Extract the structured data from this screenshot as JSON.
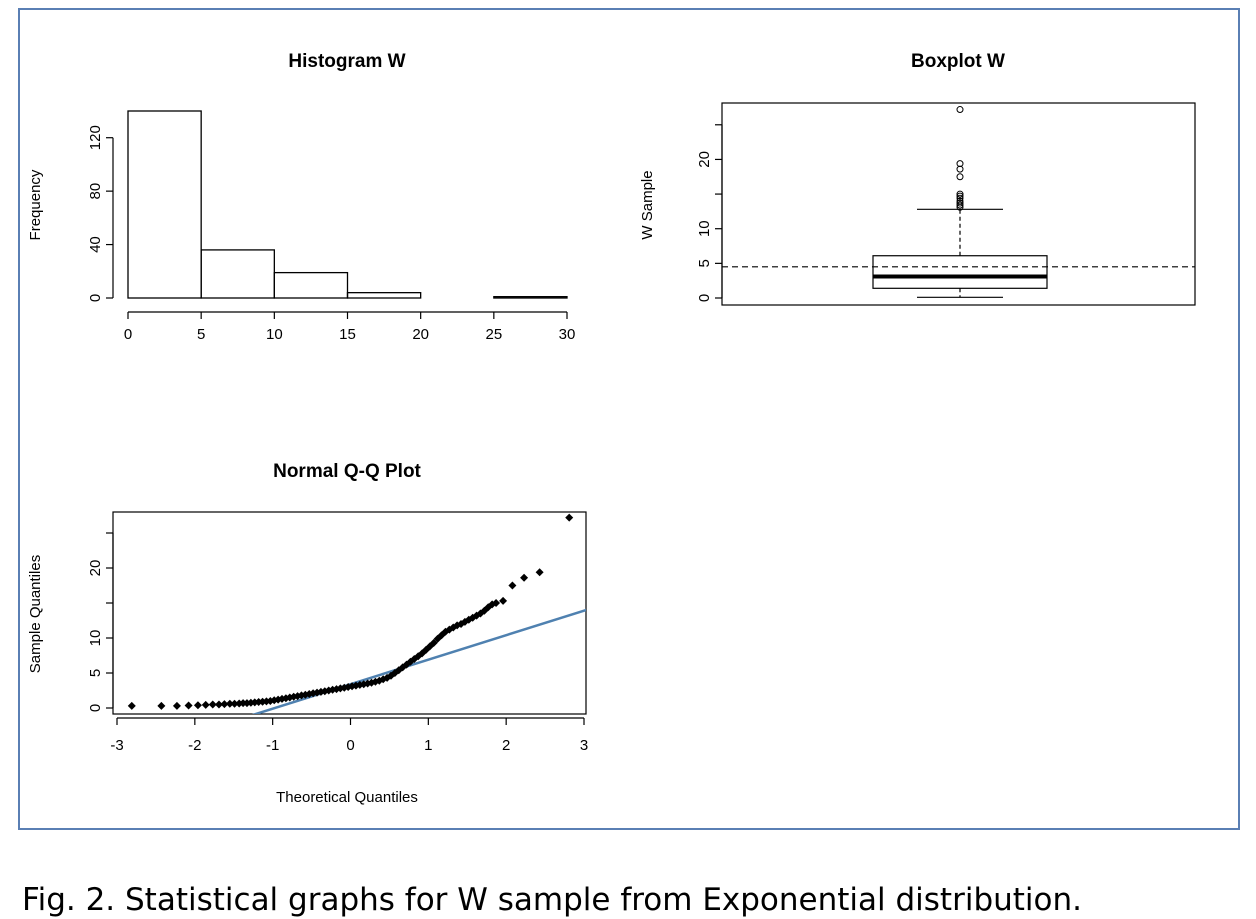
{
  "caption": "Fig. 2. Statistical graphs for W sample from Exponential distribution.",
  "colors": {
    "frame": "#5a7fb4",
    "qq_line": "#4f81b0",
    "ink": "#000000"
  },
  "chart_data": [
    {
      "type": "bar",
      "title": "Histogram W",
      "xlabel": "",
      "ylabel": "Frequency",
      "bins": [
        [
          0,
          5
        ],
        [
          5,
          10
        ],
        [
          10,
          15
        ],
        [
          15,
          20
        ],
        [
          20,
          25
        ],
        [
          25,
          30
        ]
      ],
      "values": [
        140,
        36,
        19,
        4,
        0,
        1
      ],
      "xticks": [
        0,
        5,
        10,
        15,
        20,
        25,
        30
      ],
      "yticks": [
        0,
        40,
        80,
        120
      ],
      "xlim": [
        0,
        30
      ],
      "ylim": [
        0,
        140
      ]
    },
    {
      "type": "box",
      "title": "Boxplot W",
      "ylabel": "W Sample",
      "yticks": [
        0,
        5,
        10,
        20
      ],
      "ylim": [
        0,
        28
      ],
      "min": 0.1,
      "q1": 1.4,
      "median": 3.1,
      "q3": 6.1,
      "whisker_high": 12.8,
      "mean": 4.5,
      "outliers": [
        13.1,
        13.4,
        13.7,
        14.0,
        14.4,
        14.7,
        15.0,
        17.5,
        18.6,
        19.4,
        27.2
      ]
    },
    {
      "type": "scatter",
      "title": "Normal Q-Q Plot",
      "xlabel": "Theoretical Quantiles",
      "ylabel": "Sample Quantiles",
      "xticks": [
        -3,
        -2,
        -1,
        0,
        1,
        2,
        3
      ],
      "yticks": [
        0,
        5,
        10,
        20
      ],
      "xlim": [
        -3,
        3
      ],
      "ylim": [
        0,
        27
      ],
      "reference_line": {
        "intercept": 3.4,
        "slope": 3.5
      },
      "points": [
        [
          -2.81,
          0.3
        ],
        [
          -2.43,
          0.3
        ],
        [
          -2.23,
          0.3
        ],
        [
          -2.08,
          0.35
        ],
        [
          -1.96,
          0.4
        ],
        [
          -1.86,
          0.45
        ],
        [
          -1.77,
          0.5
        ],
        [
          -1.69,
          0.5
        ],
        [
          -1.62,
          0.55
        ],
        [
          -1.55,
          0.6
        ],
        [
          -1.49,
          0.6
        ],
        [
          -1.43,
          0.65
        ],
        [
          -1.38,
          0.7
        ],
        [
          -1.33,
          0.7
        ],
        [
          -1.28,
          0.75
        ],
        [
          -1.23,
          0.8
        ],
        [
          -1.18,
          0.85
        ],
        [
          -1.13,
          0.9
        ],
        [
          -1.08,
          0.95
        ],
        [
          -1.03,
          1.0
        ],
        [
          -0.98,
          1.1
        ],
        [
          -0.93,
          1.2
        ],
        [
          -0.88,
          1.3
        ],
        [
          -0.83,
          1.4
        ],
        [
          -0.78,
          1.5
        ],
        [
          -0.73,
          1.6
        ],
        [
          -0.68,
          1.7
        ],
        [
          -0.63,
          1.8
        ],
        [
          -0.58,
          1.9
        ],
        [
          -0.53,
          2.0
        ],
        [
          -0.48,
          2.1
        ],
        [
          -0.43,
          2.2
        ],
        [
          -0.38,
          2.3
        ],
        [
          -0.33,
          2.4
        ],
        [
          -0.28,
          2.5
        ],
        [
          -0.23,
          2.6
        ],
        [
          -0.18,
          2.7
        ],
        [
          -0.13,
          2.8
        ],
        [
          -0.08,
          2.9
        ],
        [
          -0.03,
          3.0
        ],
        [
          0.02,
          3.1
        ],
        [
          0.07,
          3.2
        ],
        [
          0.12,
          3.3
        ],
        [
          0.17,
          3.4
        ],
        [
          0.22,
          3.5
        ],
        [
          0.27,
          3.6
        ],
        [
          0.32,
          3.75
        ],
        [
          0.37,
          3.9
        ],
        [
          0.42,
          4.1
        ],
        [
          0.47,
          4.3
        ],
        [
          0.52,
          4.6
        ],
        [
          0.57,
          5.0
        ],
        [
          0.62,
          5.4
        ],
        [
          0.67,
          5.8
        ],
        [
          0.72,
          6.2
        ],
        [
          0.77,
          6.6
        ],
        [
          0.82,
          7.0
        ],
        [
          0.87,
          7.4
        ],
        [
          0.92,
          7.8
        ],
        [
          0.97,
          8.3
        ],
        [
          1.02,
          8.8
        ],
        [
          1.07,
          9.3
        ],
        [
          1.12,
          9.9
        ],
        [
          1.17,
          10.4
        ],
        [
          1.22,
          10.9
        ],
        [
          1.27,
          11.2
        ],
        [
          1.32,
          11.5
        ],
        [
          1.37,
          11.8
        ],
        [
          1.42,
          12.0
        ],
        [
          1.47,
          12.3
        ],
        [
          1.52,
          12.6
        ],
        [
          1.57,
          12.9
        ],
        [
          1.62,
          13.2
        ],
        [
          1.67,
          13.5
        ],
        [
          1.72,
          13.9
        ],
        [
          1.77,
          14.4
        ],
        [
          1.82,
          14.8
        ],
        [
          1.87,
          15.0
        ],
        [
          1.96,
          15.3
        ],
        [
          2.08,
          17.5
        ],
        [
          2.23,
          18.6
        ],
        [
          2.43,
          19.4
        ],
        [
          2.81,
          27.2
        ]
      ]
    }
  ]
}
